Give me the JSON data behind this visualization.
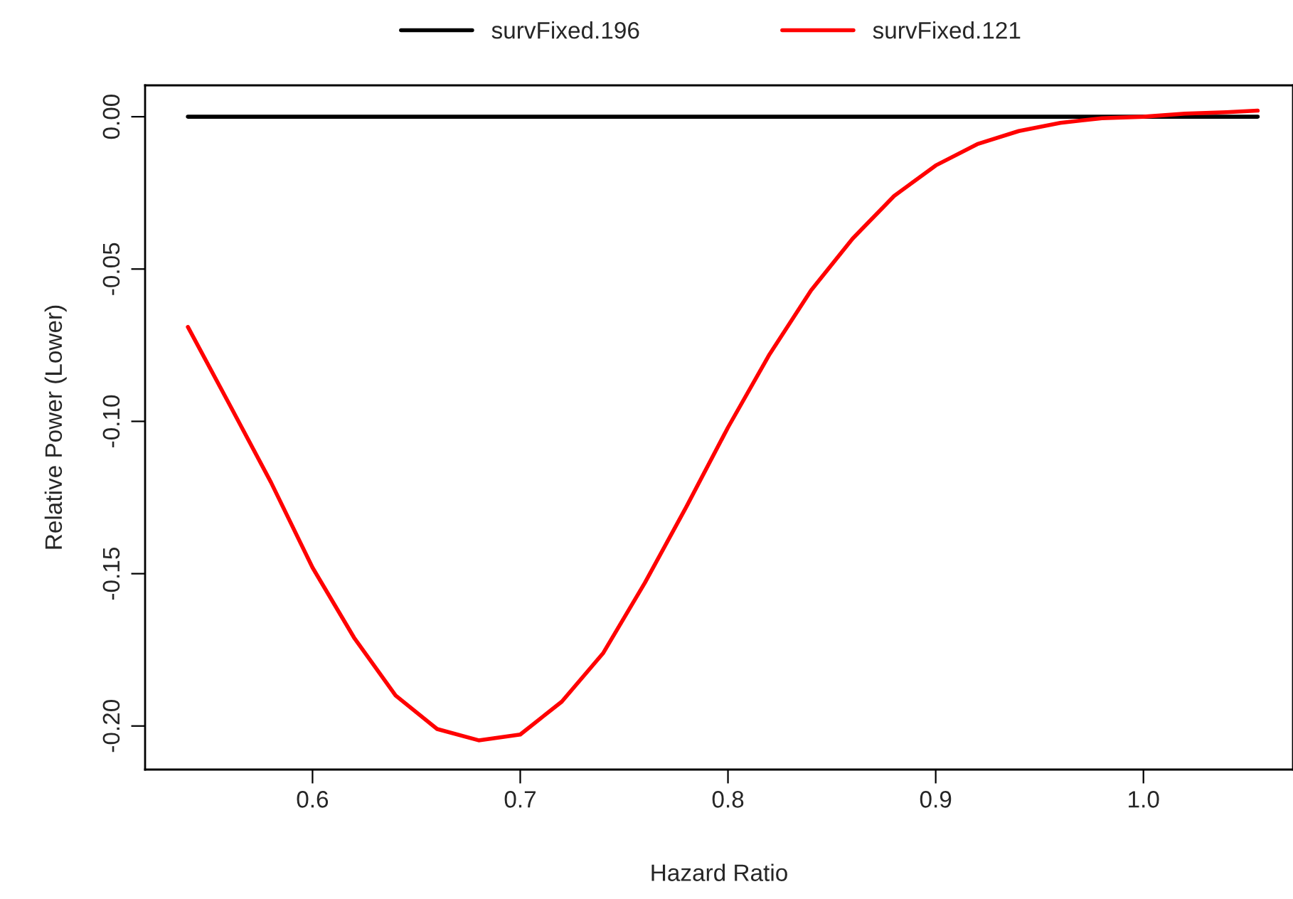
{
  "chart_data": {
    "type": "line",
    "xlabel": "Hazard Ratio",
    "ylabel": "Relative Power (Lower)",
    "xlim": [
      0.5194,
      1.072
    ],
    "ylim": [
      -0.2143,
      0.0103
    ],
    "xticks": [
      {
        "value": 0.6,
        "label": "0.6"
      },
      {
        "value": 0.7,
        "label": "0.7"
      },
      {
        "value": 0.8,
        "label": "0.8"
      },
      {
        "value": 0.9,
        "label": "0.9"
      },
      {
        "value": 1.0,
        "label": "1.0"
      }
    ],
    "yticks": [
      {
        "value": 0.0,
        "label": "0.00"
      },
      {
        "value": -0.05,
        "label": "-0.05"
      },
      {
        "value": -0.1,
        "label": "-0.10"
      },
      {
        "value": -0.15,
        "label": "-0.15"
      },
      {
        "value": -0.2,
        "label": "-0.20"
      }
    ],
    "legend": "top",
    "grid": false,
    "marker": "none",
    "line_style": "solid",
    "series": [
      {
        "name": "survFixed.196",
        "color": "#000000",
        "x": [
          0.54,
          1.055
        ],
        "values": [
          0,
          0
        ]
      },
      {
        "name": "survFixed.121",
        "color": "#ff0000",
        "x": [
          0.54,
          0.56,
          0.58,
          0.6,
          0.62,
          0.64,
          0.66,
          0.68,
          0.7,
          0.72,
          0.74,
          0.76,
          0.78,
          0.8,
          0.82,
          0.84,
          0.86,
          0.88,
          0.9,
          0.92,
          0.94,
          0.96,
          0.98,
          1.0,
          1.02,
          1.04,
          1.055
        ],
        "values": [
          -0.069,
          -0.0944,
          -0.12,
          -0.148,
          -0.171,
          -0.19,
          -0.201,
          -0.2047,
          -0.2028,
          -0.192,
          -0.176,
          -0.153,
          -0.128,
          -0.102,
          -0.078,
          -0.057,
          -0.04,
          -0.026,
          -0.016,
          -0.009,
          -0.0047,
          -0.002,
          -0.0005,
          0,
          0.001,
          0.0015,
          0.002
        ]
      }
    ]
  }
}
